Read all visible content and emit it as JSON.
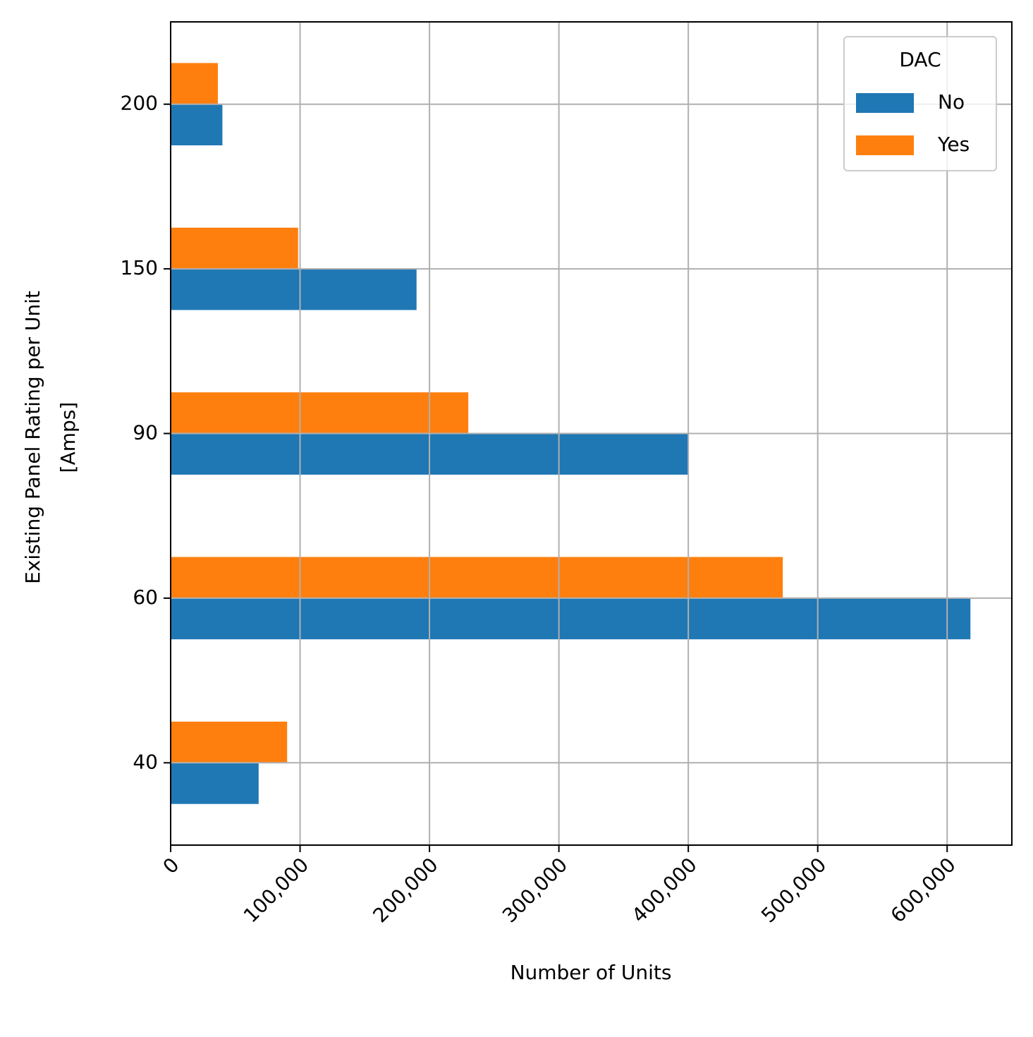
{
  "chart_data": {
    "type": "barh",
    "xlabel": "Number of Units",
    "ylabel": [
      "Existing Panel Rating per Unit",
      "[Amps]"
    ],
    "categories": [
      "40",
      "60",
      "90",
      "150",
      "200"
    ],
    "series": [
      {
        "name": "No",
        "color": "#1f77b4",
        "values": [
          68000,
          618000,
          400000,
          190000,
          40000
        ]
      },
      {
        "name": "Yes",
        "color": "#ff7f0e",
        "values": [
          90000,
          473000,
          230000,
          98500,
          36500
        ]
      }
    ],
    "legend_title": "DAC",
    "legend": "upper right",
    "xlim": [
      0,
      650000
    ],
    "xticks": [
      0,
      {
        "value": 100000,
        "label": "100,000"
      },
      {
        "value": 200000,
        "label": "200,000"
      },
      {
        "value": 300000,
        "label": "300,000"
      },
      {
        "value": 400000,
        "label": "400,000"
      },
      {
        "value": 500000,
        "label": "500,000"
      },
      {
        "value": 600000,
        "label": "600,000"
      }
    ],
    "grid": true
  }
}
